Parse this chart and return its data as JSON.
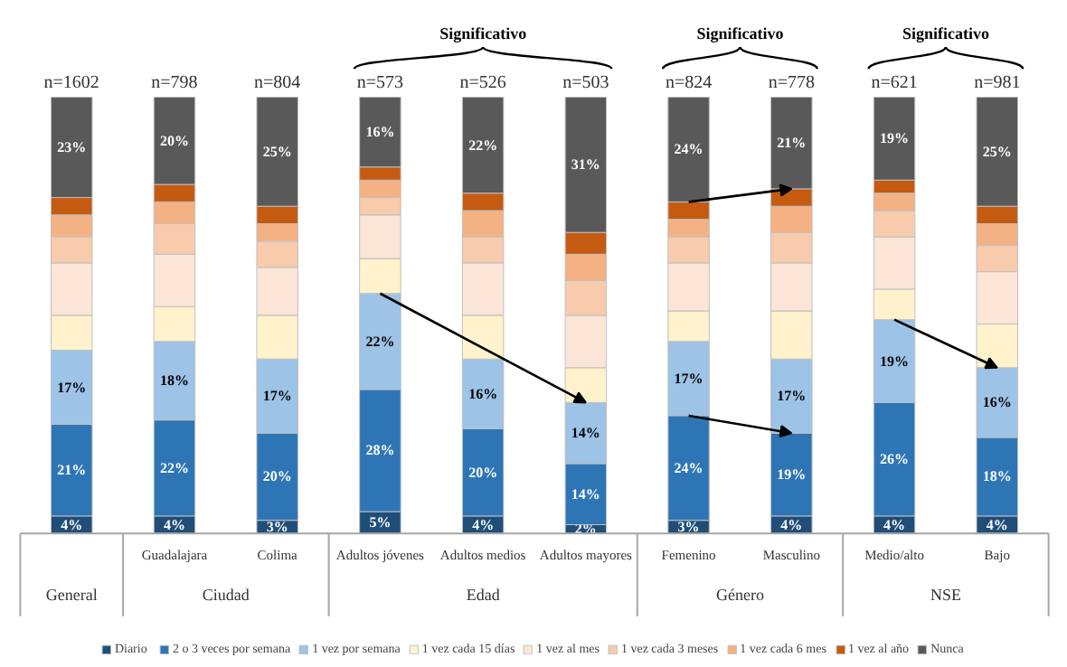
{
  "chart_data": {
    "type": "bar",
    "stacked": true,
    "legend": "bottom",
    "categories": [
      null,
      "Guadalajara",
      "Colima",
      "Adultos jóvenes",
      "Adultos medios",
      "Adultos mayores",
      "Femenino",
      "Masculino",
      "Medio/alto",
      "Bajo"
    ],
    "annotations": [
      "General",
      "Ciudad",
      "Edad",
      "Género",
      "NSE",
      "Significativo",
      "Significativo",
      "Significativo",
      "n=1602",
      "n=798",
      "n=804",
      "n=573",
      "n=526",
      "n=503",
      "n=824",
      "n=778",
      "n=621",
      "n=981"
    ],
    "series": [
      {
        "name": "Diario",
        "color": "#1f4e79",
        "values": [
          4,
          4,
          3,
          5,
          4,
          2,
          3,
          4,
          4,
          4
        ],
        "value_labels": [
          "4%",
          "4%",
          "3%",
          "5%",
          "4%",
          "2%",
          "3%",
          "4%",
          "4%",
          "4%"
        ]
      },
      {
        "name": "2 o 3 veces por semana",
        "color": "#2e75b6",
        "values": [
          21,
          22,
          20,
          28,
          20,
          14,
          24,
          19,
          26,
          18
        ],
        "value_labels": [
          "21%",
          "22%",
          "20%",
          "28%",
          "20%",
          "14%",
          "24%",
          "19%",
          "26%",
          "18%"
        ]
      },
      {
        "name": "1 vez por semana",
        "color": "#9dc3e6",
        "values": [
          17,
          18,
          17,
          22,
          16,
          14,
          17,
          17,
          19,
          16
        ],
        "value_labels": [
          "17%",
          "18%",
          "17%",
          "22%",
          "16%",
          "14%",
          "17%",
          "17%",
          "19%",
          "16%"
        ]
      },
      {
        "name": "1 vez cada 15 días",
        "color": "#fff2cc",
        "values": [
          8,
          8,
          10,
          8,
          10,
          8,
          7,
          11,
          7,
          10
        ]
      },
      {
        "name": "1 vez al mes",
        "color": "#fbe5d6",
        "values": [
          12,
          12,
          11,
          10,
          12,
          12,
          11,
          11,
          12,
          12
        ]
      },
      {
        "name": "1 vez cada 3 meses",
        "color": "#f8cbad",
        "values": [
          6,
          7,
          6,
          4,
          6,
          8,
          6,
          7,
          6,
          6
        ]
      },
      {
        "name": "1 vez cada 6 mes",
        "color": "#f4b183",
        "values": [
          5,
          5,
          4,
          4,
          6,
          6,
          4,
          6,
          4,
          5
        ]
      },
      {
        "name": "1 vez al año",
        "color": "#c55a11",
        "values": [
          4,
          4,
          4,
          3,
          4,
          5,
          4,
          4,
          3,
          4
        ]
      },
      {
        "name": "Nunca",
        "color": "#595959",
        "values": [
          23,
          20,
          25,
          16,
          22,
          31,
          24,
          21,
          19,
          25
        ],
        "value_labels": [
          "23%",
          "20%",
          "25%",
          "16%",
          "22%",
          "31%",
          "24%",
          "21%",
          "19%",
          "25%"
        ]
      }
    ]
  }
}
